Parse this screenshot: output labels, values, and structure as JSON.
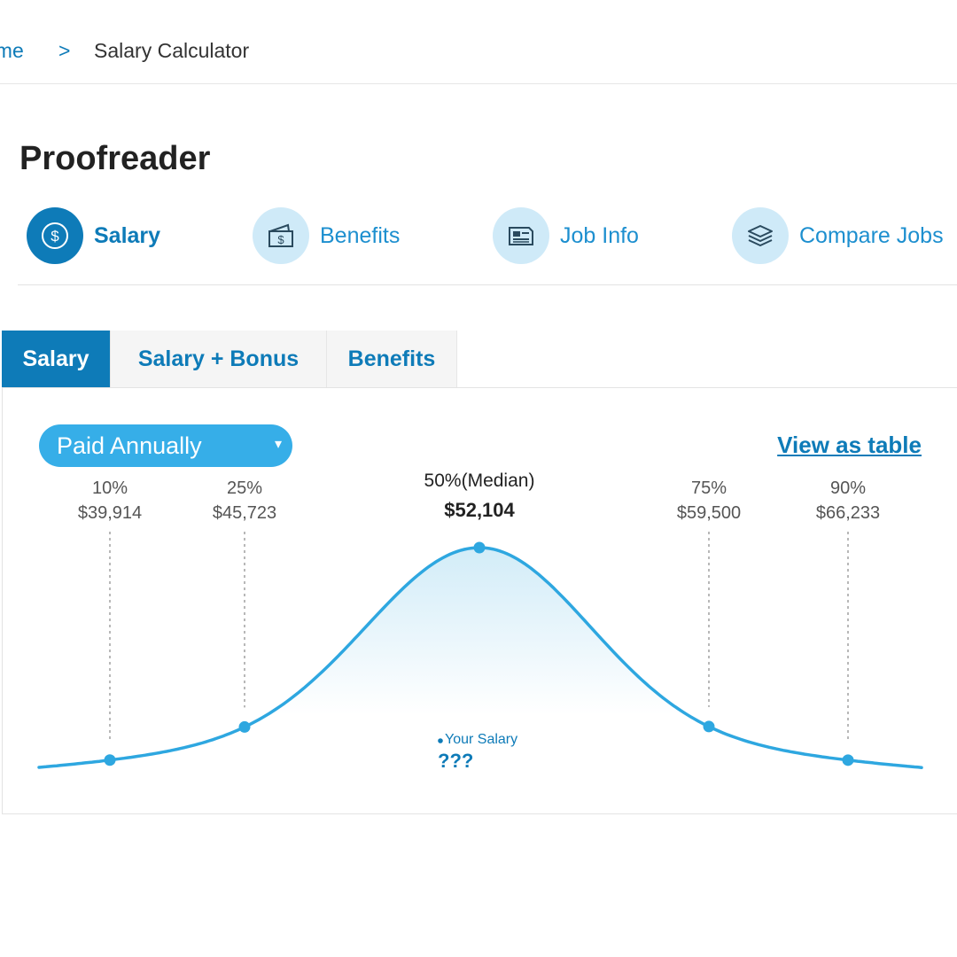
{
  "breadcrumb": {
    "home": "ome",
    "separator": ">",
    "current": "Salary Calculator"
  },
  "page_title": "Proofreader",
  "section_nav": [
    {
      "label": "Salary",
      "icon": "dollar-coin-icon",
      "active": true
    },
    {
      "label": "Benefits",
      "icon": "wallet-icon",
      "active": false
    },
    {
      "label": "Job Info",
      "icon": "document-icon",
      "active": false
    },
    {
      "label": "Compare Jobs",
      "icon": "layers-icon",
      "active": false
    }
  ],
  "tabs": [
    {
      "label": "Salary",
      "active": true
    },
    {
      "label": "Salary + Bonus",
      "active": false
    },
    {
      "label": "Benefits",
      "active": false
    }
  ],
  "pay_period": {
    "selected": "Paid Annually",
    "caret": "▾"
  },
  "view_as_table": "View as table",
  "your_salary": {
    "label": "Your Salary",
    "value": "???"
  },
  "colors": {
    "accent": "#0e7bb8",
    "curve": "#2ea7e0",
    "fill": "#cdeaf7",
    "pill": "#36aee8",
    "nav_circle": "#cfeaf8"
  },
  "chart_data": {
    "type": "area",
    "description_source": "salary distribution bell curve",
    "percentiles": [
      {
        "label": "10%",
        "value": "$39,914",
        "salary": 39914
      },
      {
        "label": "25%",
        "value": "$45,723",
        "salary": 45723
      },
      {
        "label": "50%(Median)",
        "value": "$52,104",
        "salary": 52104,
        "median": true
      },
      {
        "label": "75%",
        "value": "$59,500",
        "salary": 59500
      },
      {
        "label": "90%",
        "value": "$66,233",
        "salary": 66233
      }
    ]
  }
}
